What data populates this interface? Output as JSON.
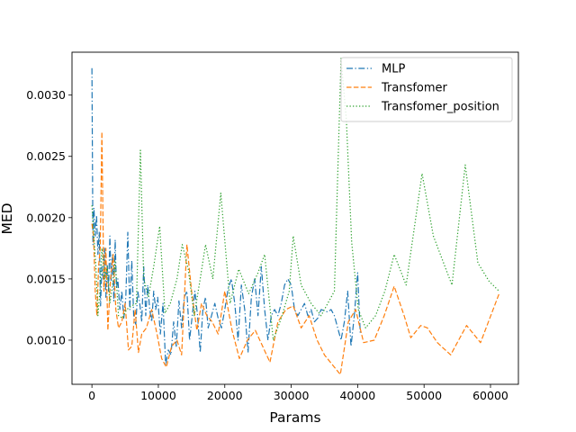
{
  "chart_data": {
    "type": "line",
    "title": "",
    "xlabel": "Params",
    "ylabel": "MED",
    "xlim": [
      -3000,
      64200
    ],
    "ylim": [
      0.00064,
      0.00335
    ],
    "xticks": [
      0,
      10000,
      20000,
      30000,
      40000,
      50000,
      60000
    ],
    "xtick_labels": [
      "0",
      "10000",
      "20000",
      "30000",
      "40000",
      "50000",
      "60000"
    ],
    "yticks": [
      0.001,
      0.0015,
      0.002,
      0.0025,
      0.003
    ],
    "ytick_labels": [
      "0.0010",
      "0.0015",
      "0.0020",
      "0.0025",
      "0.0030"
    ],
    "grid": false,
    "legend_position": "top-right",
    "series": [
      {
        "name": "MLP",
        "color": "#1f77b4",
        "linestyle": "dashdot",
        "points": [
          [
            0,
            0.00322
          ],
          [
            150,
            0.00178
          ],
          [
            300,
            0.00208
          ],
          [
            500,
            0.00185
          ],
          [
            700,
            0.00202
          ],
          [
            900,
            0.0017
          ],
          [
            1100,
            0.00188
          ],
          [
            1300,
            0.00128
          ],
          [
            1500,
            0.0016
          ],
          [
            1700,
            0.0015
          ],
          [
            1900,
            0.00175
          ],
          [
            2100,
            0.00135
          ],
          [
            2300,
            0.00162
          ],
          [
            2500,
            0.0014
          ],
          [
            2700,
            0.00185
          ],
          [
            2900,
            0.00148
          ],
          [
            3100,
            0.0017
          ],
          [
            3300,
            0.00132
          ],
          [
            3500,
            0.00182
          ],
          [
            3700,
            0.00142
          ],
          [
            3900,
            0.0015
          ],
          [
            4200,
            0.00125
          ],
          [
            4500,
            0.0014
          ],
          [
            4800,
            0.00118
          ],
          [
            5100,
            0.00135
          ],
          [
            5400,
            0.00188
          ],
          [
            5700,
            0.00125
          ],
          [
            6000,
            0.00165
          ],
          [
            6300,
            0.00118
          ],
          [
            6600,
            0.00113
          ],
          [
            6900,
            0.0014
          ],
          [
            7200,
            0.0013
          ],
          [
            7500,
            0.00115
          ],
          [
            7800,
            0.0016
          ],
          [
            8100,
            0.0012
          ],
          [
            8400,
            0.00145
          ],
          [
            8700,
            0.00125
          ],
          [
            9000,
            0.00115
          ],
          [
            9300,
            0.0014
          ],
          [
            9600,
            0.00125
          ],
          [
            9900,
            0.00135
          ],
          [
            10300,
            0.00105
          ],
          [
            10700,
            0.0013
          ],
          [
            11100,
            0.0008
          ],
          [
            11500,
            0.00092
          ],
          [
            11900,
            0.00088
          ],
          [
            12300,
            0.00115
          ],
          [
            12700,
            0.00095
          ],
          [
            13100,
            0.00132
          ],
          [
            13500,
            0.0011
          ],
          [
            13900,
            0.00135
          ],
          [
            14300,
            0.0014
          ],
          [
            14700,
            0.001
          ],
          [
            15100,
            0.0012
          ],
          [
            15500,
            0.0014
          ],
          [
            15900,
            0.0012
          ],
          [
            16300,
            0.0009
          ],
          [
            16700,
            0.00125
          ],
          [
            17100,
            0.00135
          ],
          [
            17500,
            0.0011
          ],
          [
            18000,
            0.0012
          ],
          [
            18500,
            0.0013
          ],
          [
            19000,
            0.00118
          ],
          [
            19500,
            0.0011
          ],
          [
            20000,
            0.00125
          ],
          [
            20500,
            0.00142
          ],
          [
            21000,
            0.0015
          ],
          [
            21500,
            0.0013
          ],
          [
            22000,
            0.001
          ],
          [
            22500,
            0.00145
          ],
          [
            23000,
            0.00125
          ],
          [
            23500,
            0.0009
          ],
          [
            24000,
            0.00135
          ],
          [
            24500,
            0.0015
          ],
          [
            25000,
            0.0012
          ],
          [
            25500,
            0.0016
          ],
          [
            26000,
            0.00125
          ],
          [
            26500,
            0.001
          ],
          [
            27000,
            0.0012
          ],
          [
            27500,
            0.00125
          ],
          [
            28000,
            0.0012
          ],
          [
            28500,
            0.0013
          ],
          [
            29000,
            0.00145
          ],
          [
            29500,
            0.0015
          ],
          [
            30000,
            0.00145
          ],
          [
            30500,
            0.00125
          ],
          [
            31000,
            0.0012
          ],
          [
            31500,
            0.00125
          ],
          [
            32000,
            0.0013
          ],
          [
            32500,
            0.0012
          ],
          [
            33000,
            0.00125
          ],
          [
            33500,
            0.00115
          ],
          [
            34000,
            0.00118
          ],
          [
            34500,
            0.00125
          ],
          [
            35000,
            0.00124
          ],
          [
            35500,
            0.00123
          ],
          [
            36000,
            0.00125
          ],
          [
            36500,
            0.0012
          ],
          [
            37000,
            0.0011
          ],
          [
            37500,
            0.001
          ],
          [
            38000,
            0.00115
          ],
          [
            38500,
            0.0014
          ],
          [
            39000,
            0.00095
          ],
          [
            39500,
            0.0012
          ],
          [
            40000,
            0.00155
          ],
          [
            40400,
            0.00105
          ]
        ]
      },
      {
        "name": "Transfomer",
        "color": "#ff7f0e",
        "linestyle": "dashed",
        "points": [
          [
            0,
            0.00195
          ],
          [
            250,
            0.00185
          ],
          [
            500,
            0.0014
          ],
          [
            750,
            0.0012
          ],
          [
            1000,
            0.0016
          ],
          [
            1250,
            0.00175
          ],
          [
            1500,
            0.0027
          ],
          [
            1800,
            0.0014
          ],
          [
            2100,
            0.00175
          ],
          [
            2400,
            0.00108
          ],
          [
            2800,
            0.0015
          ],
          [
            3200,
            0.0017
          ],
          [
            3600,
            0.00125
          ],
          [
            4000,
            0.0011
          ],
          [
            4500,
            0.00115
          ],
          [
            5000,
            0.0013
          ],
          [
            5500,
            0.00092
          ],
          [
            6000,
            0.00095
          ],
          [
            6500,
            0.00125
          ],
          [
            7000,
            0.0009
          ],
          [
            7500,
            0.00105
          ],
          [
            8200,
            0.0011
          ],
          [
            9000,
            0.00125
          ],
          [
            9800,
            0.00105
          ],
          [
            10500,
            0.00085
          ],
          [
            11200,
            0.00078
          ],
          [
            12000,
            0.00095
          ],
          [
            12800,
            0.001
          ],
          [
            13500,
            0.00088
          ],
          [
            14300,
            0.00178
          ],
          [
            15000,
            0.0014
          ],
          [
            15800,
            0.00108
          ],
          [
            16500,
            0.0013
          ],
          [
            17300,
            0.0012
          ],
          [
            18100,
            0.00115
          ],
          [
            19000,
            0.00105
          ],
          [
            20000,
            0.0014
          ],
          [
            21100,
            0.00108
          ],
          [
            22200,
            0.00085
          ],
          [
            23400,
            0.001
          ],
          [
            24600,
            0.00108
          ],
          [
            25700,
            0.00095
          ],
          [
            26800,
            0.00082
          ],
          [
            28000,
            0.00115
          ],
          [
            29200,
            0.00125
          ],
          [
            30300,
            0.00128
          ],
          [
            31500,
            0.0011
          ],
          [
            32700,
            0.0012
          ],
          [
            33900,
            0.001
          ],
          [
            35000,
            0.00088
          ],
          [
            36200,
            0.0008
          ],
          [
            37400,
            0.00072
          ],
          [
            38600,
            0.00115
          ],
          [
            39700,
            0.00125
          ],
          [
            40900,
            0.00098
          ],
          [
            42500,
            0.001
          ],
          [
            44000,
            0.0012
          ],
          [
            45500,
            0.00144
          ],
          [
            47000,
            0.0012
          ],
          [
            48000,
            0.00102
          ],
          [
            49500,
            0.00112
          ],
          [
            50500,
            0.0011
          ],
          [
            52000,
            0.00098
          ],
          [
            54000,
            0.00088
          ],
          [
            56400,
            0.00112
          ],
          [
            58500,
            0.00098
          ],
          [
            61300,
            0.00138
          ]
        ]
      },
      {
        "name": "Transfomer_position",
        "color": "#2ca02c",
        "linestyle": "dotted",
        "points": [
          [
            0,
            0.0021
          ],
          [
            300,
            0.00185
          ],
          [
            600,
            0.0016
          ],
          [
            900,
            0.0012
          ],
          [
            1200,
            0.0014
          ],
          [
            1500,
            0.00175
          ],
          [
            1900,
            0.0015
          ],
          [
            2300,
            0.0016
          ],
          [
            2700,
            0.0013
          ],
          [
            3100,
            0.00145
          ],
          [
            3500,
            0.00165
          ],
          [
            4000,
            0.0012
          ],
          [
            4600,
            0.00118
          ],
          [
            5200,
            0.00125
          ],
          [
            6000,
            0.00128
          ],
          [
            6700,
            0.0013
          ],
          [
            7300,
            0.00255
          ],
          [
            7800,
            0.0015
          ],
          [
            8500,
            0.00135
          ],
          [
            9300,
            0.0016
          ],
          [
            10200,
            0.00193
          ],
          [
            11000,
            0.00122
          ],
          [
            11800,
            0.0013
          ],
          [
            12800,
            0.0015
          ],
          [
            13600,
            0.00178
          ],
          [
            14500,
            0.00158
          ],
          [
            15400,
            0.0012
          ],
          [
            16300,
            0.0015
          ],
          [
            17100,
            0.00178
          ],
          [
            18200,
            0.0015
          ],
          [
            19400,
            0.0022
          ],
          [
            20800,
            0.0013
          ],
          [
            22100,
            0.00158
          ],
          [
            23600,
            0.00138
          ],
          [
            25000,
            0.00155
          ],
          [
            26000,
            0.0017
          ],
          [
            27300,
            0.001
          ],
          [
            28500,
            0.00118
          ],
          [
            29700,
            0.0014
          ],
          [
            30300,
            0.00185
          ],
          [
            31500,
            0.00145
          ],
          [
            33000,
            0.0013
          ],
          [
            34500,
            0.0012
          ],
          [
            35500,
            0.0013
          ],
          [
            36500,
            0.0014
          ],
          [
            37500,
            0.0033
          ],
          [
            38300,
            0.0028
          ],
          [
            39100,
            0.0018
          ],
          [
            40100,
            0.00125
          ],
          [
            41200,
            0.0011
          ],
          [
            42700,
            0.0012
          ],
          [
            44100,
            0.0014
          ],
          [
            45500,
            0.0017
          ],
          [
            47300,
            0.00145
          ],
          [
            49700,
            0.00236
          ],
          [
            51400,
            0.00185
          ],
          [
            54200,
            0.00145
          ],
          [
            56200,
            0.00243
          ],
          [
            58100,
            0.00163
          ],
          [
            59800,
            0.00148
          ],
          [
            61300,
            0.0014
          ]
        ]
      }
    ]
  }
}
